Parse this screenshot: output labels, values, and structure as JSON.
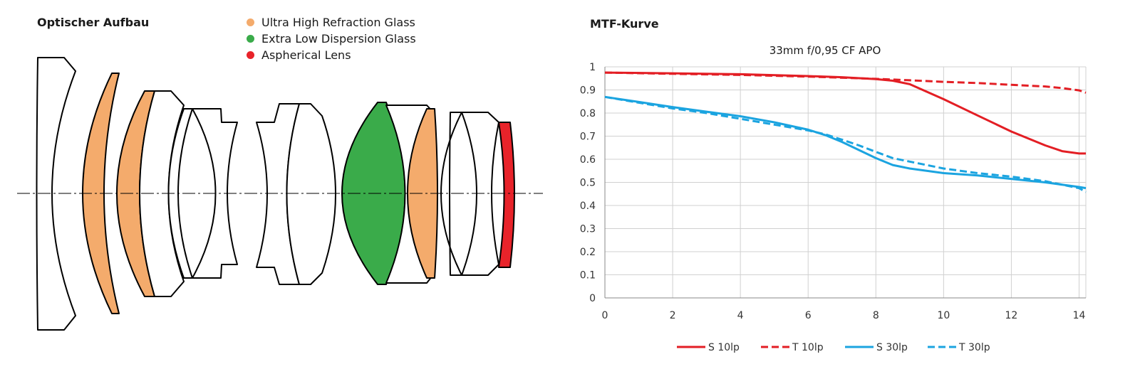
{
  "optics": {
    "title": "Optischer Aufbau",
    "legend": [
      {
        "label": "Ultra High Refraction Glass",
        "color": "#f4ab6c"
      },
      {
        "label": "Extra Low Dispersion Glass",
        "color": "#3aab4a"
      },
      {
        "label": "Aspherical Lens",
        "color": "#e8232a"
      }
    ],
    "lens_elements": [
      {
        "name": "lens-element-1",
        "glass": "standard"
      },
      {
        "name": "lens-element-2",
        "glass": "ultra-high-refraction"
      },
      {
        "name": "lens-element-3",
        "glass": "ultra-high-refraction"
      },
      {
        "name": "lens-element-4",
        "glass": "standard"
      },
      {
        "name": "lens-element-5",
        "glass": "standard"
      },
      {
        "name": "lens-element-6",
        "glass": "standard"
      },
      {
        "name": "lens-element-7",
        "glass": "standard"
      },
      {
        "name": "lens-element-8",
        "glass": "extra-low-dispersion"
      },
      {
        "name": "lens-element-9",
        "glass": "standard"
      },
      {
        "name": "lens-element-10",
        "glass": "ultra-high-refraction"
      },
      {
        "name": "lens-element-11",
        "glass": "standard"
      },
      {
        "name": "lens-element-12",
        "glass": "standard"
      },
      {
        "name": "lens-element-13",
        "glass": "aspherical"
      }
    ]
  },
  "mtf": {
    "heading": "MTF-Kurve"
  },
  "chart_data": {
    "type": "line",
    "title": "33mm f/0,95 CF APO",
    "xlabel": "",
    "ylabel": "",
    "xlim": [
      0,
      14.2
    ],
    "ylim": [
      0,
      1
    ],
    "xticks": [
      0,
      2,
      4,
      6,
      8,
      10,
      12,
      14
    ],
    "xtick_labels": [
      "0",
      "2",
      "4",
      "6",
      "8",
      "10",
      "12",
      "14"
    ],
    "yticks": [
      0,
      0.1,
      0.2,
      0.3,
      0.4,
      0.5,
      0.6,
      0.7,
      0.8,
      0.9,
      1
    ],
    "ytick_labels": [
      "0",
      "0.1",
      "0.2",
      "0.3",
      "0.4",
      "0.5",
      "0.6",
      "0.7",
      "0.8",
      "0.9",
      "1"
    ],
    "grid": true,
    "legend_position": "bottom",
    "series": [
      {
        "name": "S 10lp",
        "color": "#e31e24",
        "dash": "solid",
        "x": [
          0,
          2,
          4,
          6,
          7,
          8,
          8.5,
          9,
          10,
          11,
          12,
          13,
          13.5,
          14,
          14.2
        ],
        "y": [
          0.975,
          0.972,
          0.968,
          0.96,
          0.955,
          0.947,
          0.94,
          0.925,
          0.86,
          0.79,
          0.72,
          0.66,
          0.635,
          0.625,
          0.625
        ]
      },
      {
        "name": "T 10lp",
        "color": "#e31e24",
        "dash": "dashed",
        "x": [
          0,
          2,
          4,
          6,
          8,
          9,
          10,
          11,
          12,
          13,
          13.5,
          14,
          14.2
        ],
        "y": [
          0.975,
          0.97,
          0.965,
          0.958,
          0.948,
          0.942,
          0.935,
          0.93,
          0.922,
          0.915,
          0.908,
          0.898,
          0.888
        ]
      },
      {
        "name": "S 30lp",
        "color": "#1ba4e0",
        "dash": "solid",
        "x": [
          0,
          1,
          2,
          3,
          4,
          5,
          6,
          6.5,
          7,
          7.5,
          8,
          8.5,
          9,
          10,
          11,
          12,
          13,
          14,
          14.2
        ],
        "y": [
          0.87,
          0.848,
          0.826,
          0.806,
          0.786,
          0.76,
          0.728,
          0.705,
          0.675,
          0.64,
          0.605,
          0.575,
          0.56,
          0.54,
          0.53,
          0.515,
          0.5,
          0.48,
          0.475
        ]
      },
      {
        "name": "T 30lp",
        "color": "#1ba4e0",
        "dash": "dashed",
        "x": [
          0,
          1,
          2,
          3,
          4,
          5,
          6,
          6.5,
          7,
          7.5,
          8,
          8.5,
          9,
          10,
          11,
          12,
          13,
          14,
          14.2
        ],
        "y": [
          0.87,
          0.845,
          0.82,
          0.8,
          0.775,
          0.75,
          0.725,
          0.708,
          0.685,
          0.66,
          0.632,
          0.605,
          0.59,
          0.56,
          0.54,
          0.525,
          0.505,
          0.475,
          0.458
        ]
      }
    ]
  }
}
